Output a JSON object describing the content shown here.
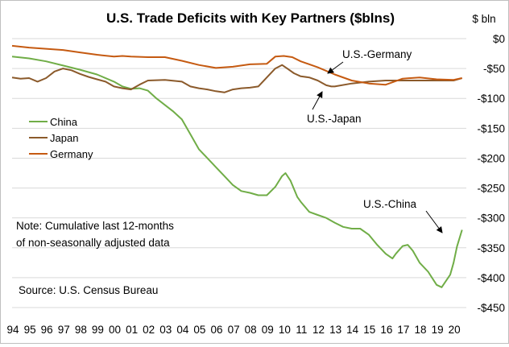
{
  "chart_data": {
    "type": "line",
    "title": "U.S. Trade Deficits with Key Partners ($blns)",
    "ylabel": "$ bln",
    "ylim": [
      -450,
      0
    ],
    "xlim": [
      1994,
      2020.75
    ],
    "yticks": [
      0,
      -50,
      -100,
      -150,
      -200,
      -250,
      -300,
      -350,
      -400,
      -450
    ],
    "ytick_labels": [
      "$0",
      "-$50",
      "-$100",
      "-$150",
      "-$200",
      "-$250",
      "-$300",
      "-$350",
      "-$400",
      "-$450"
    ],
    "xtick_labels": [
      "94",
      "95",
      "96",
      "97",
      "98",
      "99",
      "00",
      "01",
      "02",
      "03",
      "04",
      "05",
      "06",
      "07",
      "08",
      "09",
      "10",
      "11",
      "12",
      "13",
      "14",
      "15",
      "16",
      "17",
      "18",
      "19",
      "20"
    ],
    "grid": "horizontal",
    "legend_position": "left",
    "series": [
      {
        "name": "China",
        "color": "#70ad47",
        "x": [
          1994,
          1995,
          1996,
          1997,
          1998,
          1999,
          2000,
          2000.5,
          2001,
          2001.5,
          2002,
          2002.5,
          2003,
          2003.5,
          2004,
          2004.5,
          2005,
          2005.5,
          2006,
          2006.5,
          2007,
          2007.5,
          2008,
          2008.5,
          2009,
          2009.5,
          2009.9,
          2010.1,
          2010.4,
          2010.8,
          2011,
          2011.5,
          2012,
          2012.5,
          2013,
          2013.5,
          2014,
          2014.5,
          2015,
          2015.5,
          2016,
          2016.4,
          2016.6,
          2017,
          2017.3,
          2017.6,
          2018,
          2018.5,
          2019,
          2019.3,
          2019.8,
          2020,
          2020.2,
          2020.5
        ],
        "values": [
          -30,
          -33,
          -38,
          -45,
          -52,
          -60,
          -72,
          -80,
          -84,
          -83,
          -87,
          -100,
          -111,
          -122,
          -135,
          -160,
          -185,
          -200,
          -215,
          -230,
          -245,
          -255,
          -258,
          -262,
          -262,
          -248,
          -230,
          -225,
          -238,
          -265,
          -273,
          -290,
          -295,
          -300,
          -308,
          -315,
          -318,
          -318,
          -328,
          -345,
          -360,
          -368,
          -360,
          -347,
          -345,
          -355,
          -375,
          -390,
          -412,
          -416,
          -395,
          -375,
          -348,
          -320
        ]
      },
      {
        "name": "Japan",
        "color": "#8b5a2b",
        "x": [
          1994,
          1994.5,
          1995,
          1995.5,
          1996,
          1996.5,
          1997,
          1997.5,
          1998,
          1998.5,
          1999,
          1999.5,
          2000,
          2000.5,
          2001,
          2001.5,
          2002,
          2003,
          2004,
          2004.5,
          2005,
          2005.5,
          2006,
          2006.5,
          2007,
          2007.5,
          2008,
          2008.5,
          2009,
          2009.5,
          2009.9,
          2010.2,
          2010.6,
          2011,
          2011.5,
          2012,
          2012.5,
          2012.8,
          2013,
          2014,
          2015,
          2016,
          2017,
          2018,
          2019,
          2020,
          2020.5
        ],
        "values": [
          -65,
          -67,
          -66,
          -72,
          -66,
          -55,
          -50,
          -53,
          -59,
          -64,
          -68,
          -72,
          -80,
          -83,
          -85,
          -77,
          -70,
          -69,
          -72,
          -80,
          -83,
          -85,
          -88,
          -90,
          -85,
          -83,
          -82,
          -80,
          -65,
          -50,
          -44,
          -50,
          -58,
          -63,
          -65,
          -70,
          -78,
          -80,
          -80,
          -75,
          -72,
          -70,
          -70,
          -70,
          -70,
          -70,
          -66
        ]
      },
      {
        "name": "Germany",
        "color": "#c55a11",
        "x": [
          1994,
          1995,
          1996,
          1997,
          1998,
          1999,
          2000,
          2000.5,
          2001,
          2002,
          2003,
          2004,
          2005,
          2006,
          2007,
          2008,
          2009,
          2009.5,
          2010,
          2010.5,
          2011,
          2012,
          2013,
          2014,
          2015,
          2016,
          2017,
          2018,
          2019,
          2020,
          2020.5
        ],
        "values": [
          -12,
          -15,
          -17,
          -19,
          -23,
          -27,
          -30,
          -29,
          -30,
          -31,
          -31,
          -37,
          -44,
          -49,
          -47,
          -43,
          -42,
          -30,
          -29,
          -31,
          -38,
          -48,
          -60,
          -70,
          -75,
          -77,
          -67,
          -65,
          -68,
          -69,
          -66
        ]
      }
    ],
    "annotations": [
      "U.S.-Germany",
      "U.S.-Japan",
      "U.S.-China"
    ],
    "note": "Note:  Cumulative last 12-months of non-seasonally adjusted data",
    "note_lines": [
      "Note:  Cumulative last 12-months",
      "of non-seasonally adjusted data"
    ],
    "source": "Source:  U.S. Census Bureau"
  }
}
